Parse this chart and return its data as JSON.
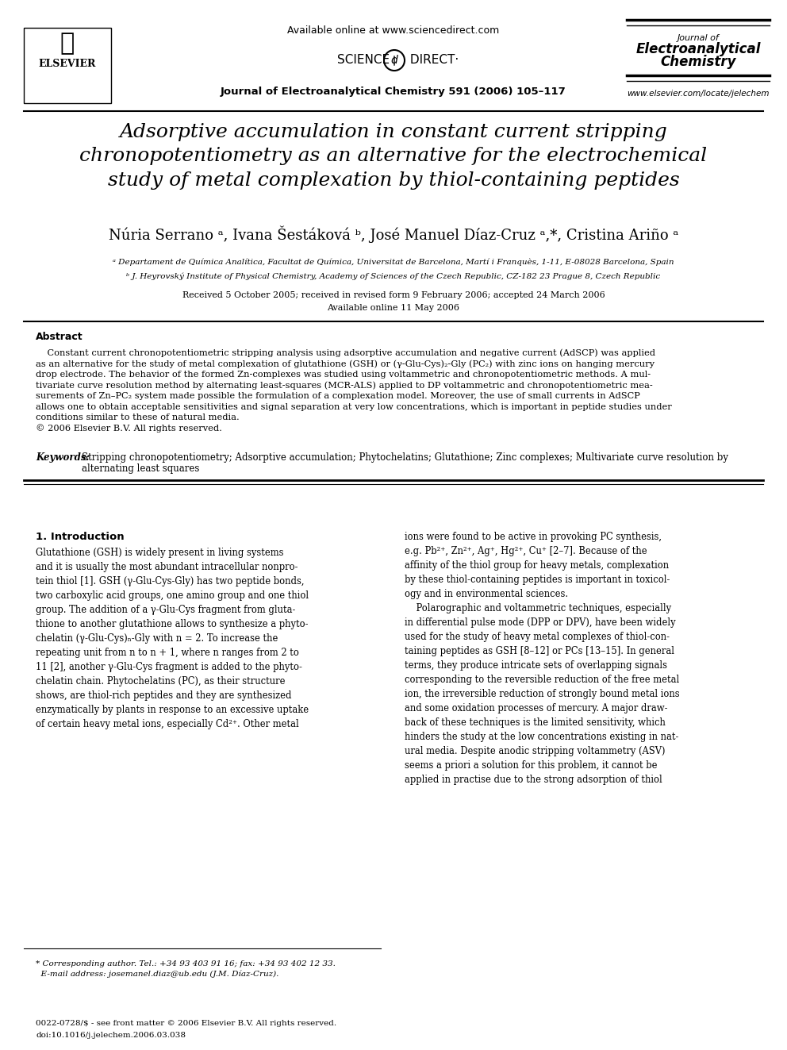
{
  "bg_color": "#ffffff",
  "header": {
    "available_online": "Available online at www.sciencedirect.com",
    "journal_line": "Journal of Electroanalytical Chemistry 591 (2006) 105–117",
    "journal_name_line1": "Journal of",
    "journal_name_line2": "Electroanalytical",
    "journal_name_line3": "Chemistry",
    "website": "www.elsevier.com/locate/jelechem",
    "elsevier_text": "ELSEVIER",
    "sciencedirect_text": "SCIENCE ⓓ DIRECT·"
  },
  "title": "Adsorptive accumulation in constant current stripping\nchronopotentiometry as an alternative for the electrochemical\nstudy of metal complexation by thiol-containing peptides",
  "authors": "Núria Serrano ᵃ, Ivana Šestáková ᵇ, José Manuel Díaz-Cruz ᵃ,*, Cristina Ariño ᵃ",
  "affil_a": "ᵃ Departament de Química Analítica, Facultat de Química, Universitat de Barcelona, Martí i Franquès, 1-11, E-08028 Barcelona, Spain",
  "affil_b": "ᵇ J. Heyrovský Institute of Physical Chemistry, Academy of Sciences of the Czech Republic, CZ-182 23 Prague 8, Czech Republic",
  "received": "Received 5 October 2005; received in revised form 9 February 2006; accepted 24 March 2006",
  "available": "Available online 11 May 2006",
  "abstract_title": "Abstract",
  "abstract_text": "Constant current chronopotentiometric stripping analysis using adsorptive accumulation and negative current (AdSCP) was applied as an alternative for the study of metal complexation of glutathione (GSH) or (γ-Glu-Cys)₂-Gly (PC₂) with zinc ions on hanging mercury drop electrode. The behavior of the formed Zn-complexes was studied using voltammetric and chronopotentiometric methods. A mul-tivariate curve resolution method by alternating least-squares (MCR-ALS) applied to DP voltammetric and chronopotentiometric mea-surements of Zn–PC₂ system made possible the formulation of a complexation model. Moreover, the use of small currents in AdSCP allows one to obtain acceptable sensitivities and signal separation at very low concentrations, which is important in peptide studies under conditions similar to these of natural media.\n© 2006 Elsevier B.V. All rights reserved.",
  "keywords_label": "Keywords:",
  "keywords_text": "Stripping chronopotentiometry; Adsorptive accumulation; Phytochelatins; Glutathione; Zinc complexes; Multivariate curve resolution by alternating least squares",
  "section1_title": "1. Introduction",
  "section1_col1": "Glutathione (GSH) is widely present in living systems and it is usually the most abundant intracellular nonpro-tein thiol [1]. GSH (γ-Glu-Cys-Gly) has two peptide bonds, two carboxylic acid groups, one amino group and one thiol group. The addition of a γ-Glu-Cys fragment from gluta-thione to another glutathione allows to synthesize a phyto-chelatin (γ-Glu-Cys)ₙ-Gly with n = 2. To increase the repeating unit from n to n + 1, where n ranges from 2 to 11 [2], another γ-Glu-Cys fragment is added to the phyto-chelatin chain. Phytochelatins (PC), as their structure shows, are thiol-rich peptides and they are synthesized enzymatically by plants in response to an excessive uptake of certain heavy metal ions, especially Cd²⁺. Other metal",
  "section1_col2": "ions were found to be active in provoking PC synthesis, e.g. Pb²⁺, Zn²⁺, Ag⁺, Hg²⁺, Cu⁺ [2–7]. Because of the affinity of the thiol group for heavy metals, complexation by these thiol-containing peptides is important in toxicol-ogy and in environmental sciences.\n    Polarographic and voltammetric techniques, especially in differential pulse mode (DPP or DPV), have been widely used for the study of heavy metal complexes of thiol-con-taining peptides as GSH [8–12] or PCs [13–15]. In general terms, they produce intricate sets of overlapping signals corresponding to the reversible reduction of the free metal ion, the irreversible reduction of strongly bound metal ions and some oxidation processes of mercury. A major draw-back of these techniques is the limited sensitivity, which hinders the study at the low concentrations existing in nat-ural media. Despite anodic stripping voltammetry (ASV) seems a priori a solution for this problem, it cannot be applied in practise due to the strong adsorption of thiol",
  "footnote_corresp": "* Corresponding author. Tel.: +34 93 403 91 16; fax: +34 93 402 12 33.\n  E-mail address: josemanel.diaz@ub.edu (J.M. Díaz-Cruz).",
  "footer_issn": "0022-0728/$ - see front matter © 2006 Elsevier B.V. All rights reserved.",
  "footer_doi": "doi:10.1016/j.jelechem.2006.03.038"
}
